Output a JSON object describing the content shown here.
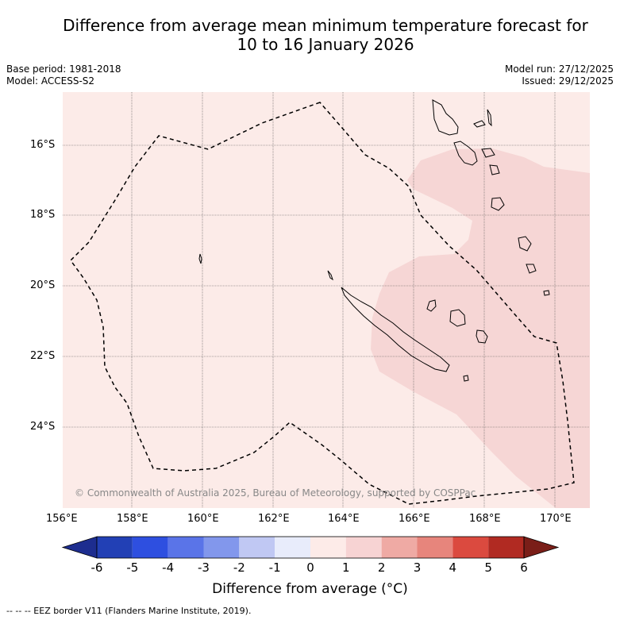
{
  "title": {
    "line1": "Difference from average mean minimum temperature forecast for",
    "line2": "10 to 16 January 2026"
  },
  "meta": {
    "base_period": "Base period: 1981-2018",
    "model": "Model: ACCESS-S2",
    "model_run": "Model run: 27/12/2025",
    "issued": "Issued: 29/12/2025"
  },
  "map": {
    "copyright": "© Commonwealth of Australia 2025, Bureau of Meteorology, supported by COSPPac",
    "longitude_labels": [
      "156°E",
      "158°E",
      "160°E",
      "162°E",
      "164°E",
      "166°E",
      "168°E",
      "170°E"
    ],
    "latitude_labels": [
      "16°S",
      "18°S",
      "20°S",
      "22°S",
      "24°S"
    ],
    "background_anomaly_band": "0 to 1",
    "east_region_anomaly_band": "1 to 2"
  },
  "colorbar": {
    "title": "Difference from average (°C)",
    "tick_labels": [
      "-6",
      "-5",
      "-4",
      "-3",
      "-2",
      "-1",
      "0",
      "1",
      "2",
      "3",
      "4",
      "5",
      "6"
    ],
    "colors": [
      "#1d2d8f",
      "#2240b5",
      "#2e4fe0",
      "#5a74e8",
      "#8297ec",
      "#c0c8f3",
      "#e8ecfb",
      "#fdebe8",
      "#f7d3d3",
      "#efaaa4",
      "#e7857c",
      "#db4a3f",
      "#b12a22",
      "#7a1e18"
    ],
    "under_color": "#1d2d8f",
    "over_color": "#7a1e18"
  },
  "footnote": "--  --  -- EEZ border V11 (Flanders Marine Institute, 2019)."
}
